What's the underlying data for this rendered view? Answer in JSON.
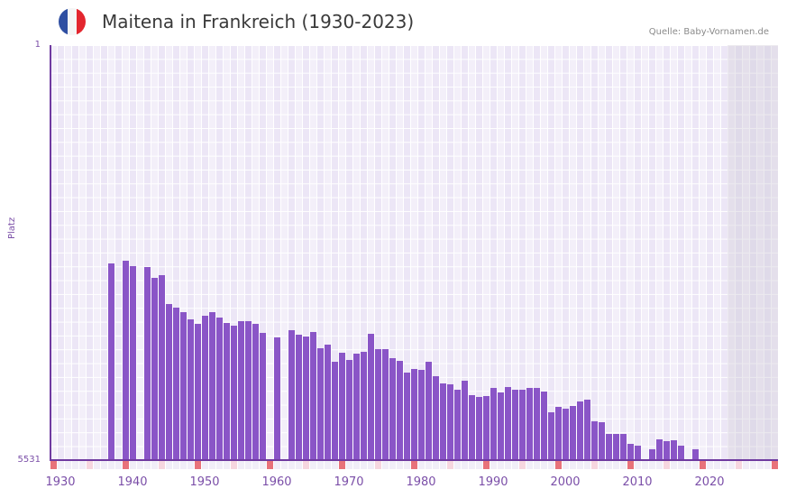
{
  "header": {
    "title": "Maitena in Frankreich (1930-2023)",
    "source": "Quelle: Baby-Vornamen.de",
    "flag_colors": [
      "#2f4fa2",
      "#f5f5f5",
      "#e3262e"
    ]
  },
  "colors": {
    "bar": "#8a55c7",
    "axis": "#6f3aa0",
    "label": "#7b4fa8",
    "marker_decade": "#e8727a",
    "marker_half": "#f6d6df"
  },
  "chart_data": {
    "type": "bar",
    "title": "Maitena in Frankreich (1930-2023)",
    "xlabel": "",
    "ylabel": "Platz",
    "y_inverted": true,
    "ylim": [
      1,
      5531
    ],
    "yticks": [
      "1",
      "5531"
    ],
    "xlim": [
      1929,
      2029
    ],
    "xticks": [
      "1930",
      "1940",
      "1950",
      "1960",
      "1970",
      "1980",
      "1990",
      "2000",
      "2010",
      "2020"
    ],
    "grid": true,
    "shaded_region": [
      2023,
      2029
    ],
    "categories": [
      1937,
      1939,
      1940,
      1942,
      1943,
      1944,
      1945,
      1946,
      1947,
      1948,
      1949,
      1950,
      1951,
      1952,
      1953,
      1954,
      1955,
      1956,
      1957,
      1958,
      1960,
      1962,
      1963,
      1964,
      1965,
      1966,
      1967,
      1968,
      1969,
      1970,
      1971,
      1972,
      1973,
      1974,
      1975,
      1976,
      1977,
      1978,
      1979,
      1980,
      1981,
      1982,
      1983,
      1984,
      1985,
      1986,
      1987,
      1988,
      1989,
      1990,
      1991,
      1992,
      1993,
      1994,
      1995,
      1996,
      1997,
      1998,
      1999,
      2000,
      2001,
      2002,
      2003,
      2004,
      2005,
      2006,
      2007,
      2008,
      2009,
      2010,
      2012,
      2013,
      2014,
      2015,
      2016,
      2018
    ],
    "values": [
      2910,
      2874,
      2946,
      2958,
      3102,
      3066,
      3451,
      3499,
      3559,
      3655,
      3715,
      3607,
      3559,
      3631,
      3703,
      3739,
      3679,
      3679,
      3715,
      3835,
      3895,
      3799,
      3859,
      3883,
      3823,
      4040,
      3992,
      4220,
      4100,
      4196,
      4112,
      4088,
      3847,
      4052,
      4052,
      4172,
      4208,
      4364,
      4316,
      4328,
      4220,
      4412,
      4508,
      4520,
      4592,
      4472,
      4664,
      4688,
      4676,
      4568,
      4628,
      4556,
      4592,
      4592,
      4568,
      4568,
      4616,
      4893,
      4821,
      4845,
      4809,
      4749,
      4725,
      5013,
      5025,
      5181,
      5181,
      5181,
      5313,
      5337,
      5385,
      5253,
      5277,
      5265,
      5337,
      5385
    ]
  }
}
